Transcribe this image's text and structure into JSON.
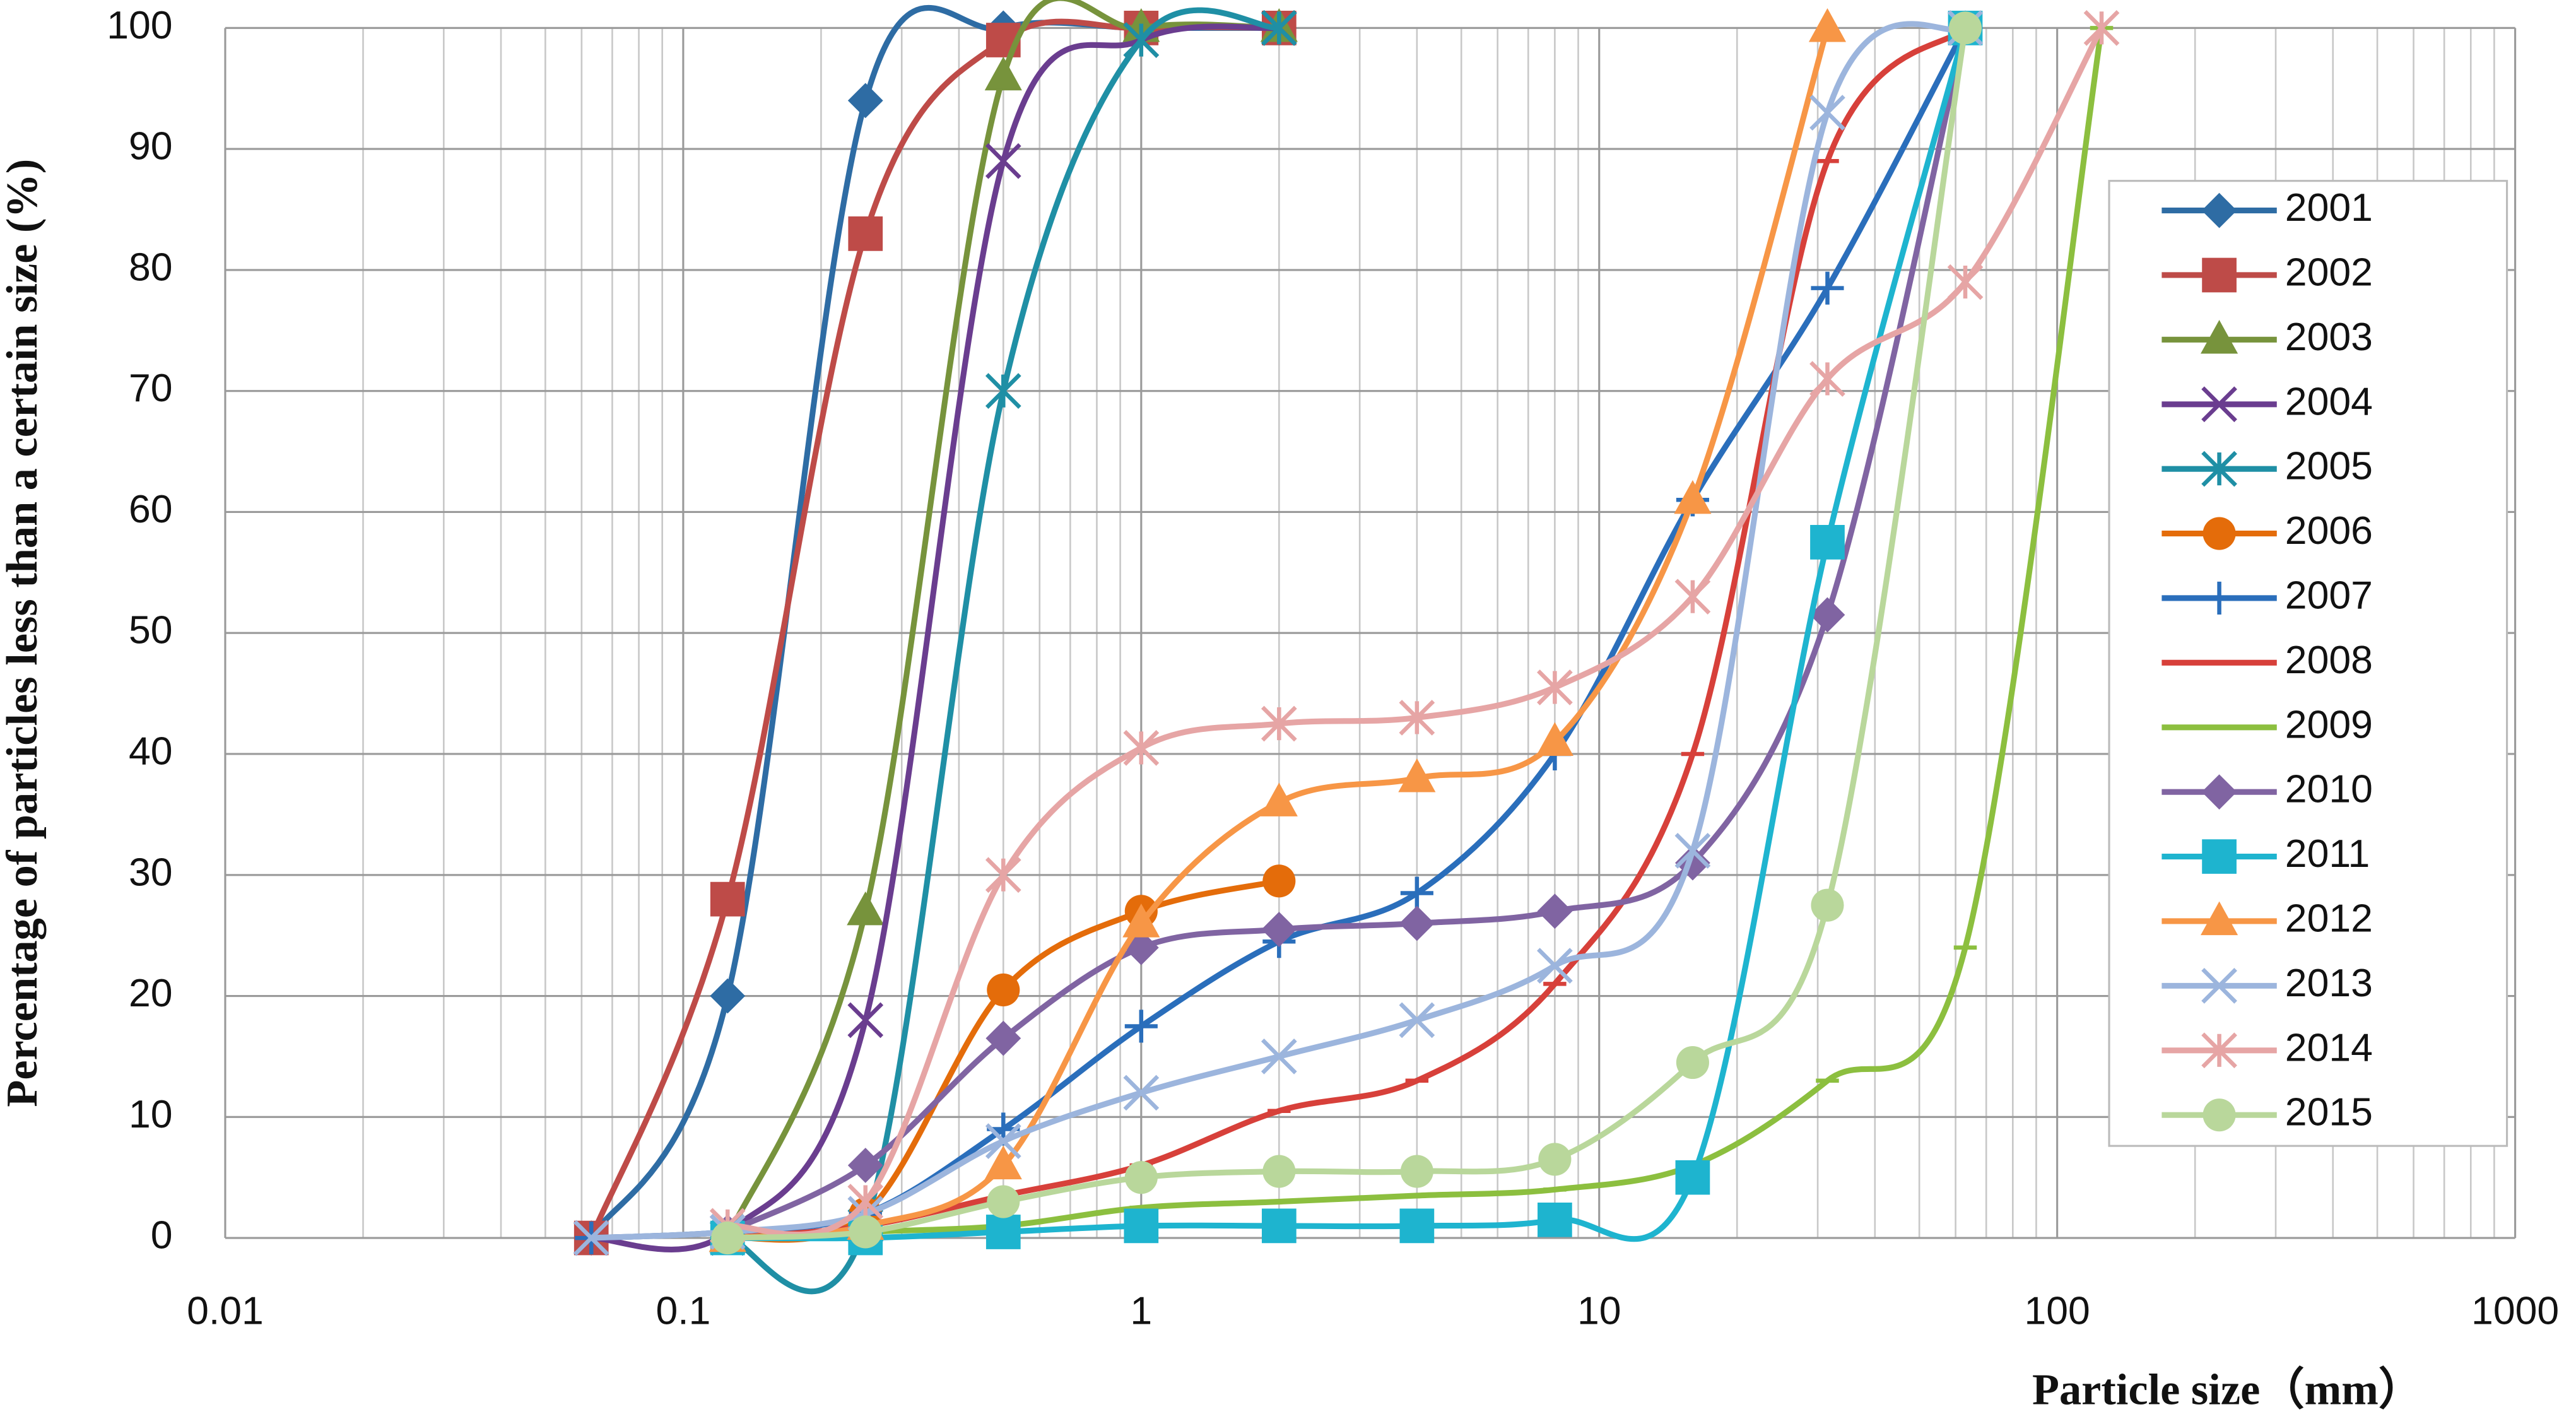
{
  "chart_data": {
    "type": "line",
    "x_label": "Particle size（mm）",
    "y_label": "Percentage of particles less than a certain size (%)",
    "xscale": "log",
    "grid": true,
    "legend": "right",
    "xlim": [
      0.01,
      1000
    ],
    "xticks": [
      0.01,
      0.1,
      1,
      10,
      100,
      1000
    ],
    "ylim": [
      0,
      100
    ],
    "yticks": [
      0,
      10,
      20,
      30,
      40,
      50,
      60,
      70,
      80,
      90,
      100
    ],
    "series": [
      {
        "name": "2001",
        "color": "#2e6ca4",
        "marker": "diamond",
        "x": [
          0.063,
          0.125,
          0.25,
          0.5,
          1,
          2
        ],
        "values": [
          0,
          20,
          94,
          100,
          100,
          100
        ]
      },
      {
        "name": "2002",
        "color": "#be4b48",
        "marker": "square",
        "x": [
          0.063,
          0.125,
          0.25,
          0.5,
          1,
          2
        ],
        "values": [
          0,
          28,
          83,
          99,
          100,
          100
        ]
      },
      {
        "name": "2003",
        "color": "#77933c",
        "marker": "triangle",
        "x": [
          0.125,
          0.25,
          0.5,
          1,
          2
        ],
        "values": [
          0,
          27,
          96,
          100,
          100
        ]
      },
      {
        "name": "2004",
        "color": "#6a3d8f",
        "marker": "x",
        "x": [
          0.063,
          0.125,
          0.25,
          0.5,
          1,
          2
        ],
        "values": [
          0,
          0.5,
          18,
          89,
          99,
          100
        ]
      },
      {
        "name": "2005",
        "color": "#1f8fa5",
        "marker": "asterisk",
        "x": [
          0.125,
          0.25,
          0.5,
          1,
          2
        ],
        "values": [
          0,
          1,
          70,
          99,
          100
        ]
      },
      {
        "name": "2006",
        "color": "#e46c0a",
        "marker": "circle",
        "x": [
          0.125,
          0.25,
          0.5,
          1,
          2
        ],
        "values": [
          0,
          2,
          20.5,
          27,
          29.5
        ]
      },
      {
        "name": "2007",
        "color": "#2a6ebb",
        "marker": "plus",
        "x": [
          0.063,
          0.125,
          0.25,
          0.5,
          1,
          2,
          4,
          8,
          16,
          31.5,
          63
        ],
        "values": [
          0,
          0.5,
          2,
          9,
          17.5,
          24.5,
          28.5,
          40,
          61,
          78.5,
          100
        ]
      },
      {
        "name": "2008",
        "color": "#d7403a",
        "marker": "dash",
        "x": [
          0.125,
          0.25,
          0.5,
          1,
          2,
          4,
          8,
          16,
          31.5,
          63
        ],
        "values": [
          0,
          1,
          3.5,
          6,
          10.5,
          13,
          21,
          40,
          89,
          100
        ]
      },
      {
        "name": "2009",
        "color": "#8cbf3f",
        "marker": "dash",
        "x": [
          0.125,
          0.25,
          0.5,
          1,
          2,
          4,
          8,
          16,
          31.5,
          63,
          125
        ],
        "values": [
          0,
          0.5,
          1,
          2.5,
          3,
          3.5,
          4,
          6,
          13,
          24,
          100
        ]
      },
      {
        "name": "2010",
        "color": "#8064a2",
        "marker": "diamond",
        "x": [
          0.125,
          0.25,
          0.5,
          1,
          2,
          4,
          8,
          16,
          31.5,
          63
        ],
        "values": [
          0.5,
          6,
          16.5,
          24,
          25.5,
          26,
          27,
          31,
          51.5,
          100
        ]
      },
      {
        "name": "2011",
        "color": "#1eb4cf",
        "marker": "square",
        "x": [
          0.125,
          0.25,
          0.5,
          1,
          2,
          4,
          8,
          16,
          31.5,
          63
        ],
        "values": [
          0,
          0,
          0.5,
          1,
          1,
          1,
          1.5,
          5,
          57.5,
          100
        ]
      },
      {
        "name": "2012",
        "color": "#f79646",
        "marker": "triangle",
        "x": [
          0.125,
          0.25,
          0.5,
          1,
          2,
          4,
          8,
          16,
          31.5
        ],
        "values": [
          0,
          1,
          6,
          26,
          36,
          38,
          41,
          61,
          100
        ]
      },
      {
        "name": "2013",
        "color": "#9cb5dd",
        "marker": "x",
        "x": [
          0.063,
          0.125,
          0.25,
          0.5,
          1,
          2,
          4,
          8,
          16,
          31.5,
          63
        ],
        "values": [
          0,
          0.5,
          2,
          8,
          12,
          15,
          18,
          22.5,
          32,
          93,
          100
        ]
      },
      {
        "name": "2014",
        "color": "#e6a5a5",
        "marker": "asterisk",
        "x": [
          0.125,
          0.25,
          0.5,
          1,
          2,
          4,
          8,
          16,
          31.5,
          63,
          125
        ],
        "values": [
          1,
          3,
          30,
          40.5,
          42.5,
          43,
          45.5,
          53,
          71,
          79,
          100
        ]
      },
      {
        "name": "2015",
        "color": "#b9d79b",
        "marker": "circle",
        "x": [
          0.125,
          0.25,
          0.5,
          1,
          2,
          4,
          8,
          16,
          31.5,
          63
        ],
        "values": [
          0,
          0.5,
          3,
          5,
          5.5,
          5.5,
          6.5,
          14.5,
          27.5,
          100
        ]
      }
    ]
  }
}
